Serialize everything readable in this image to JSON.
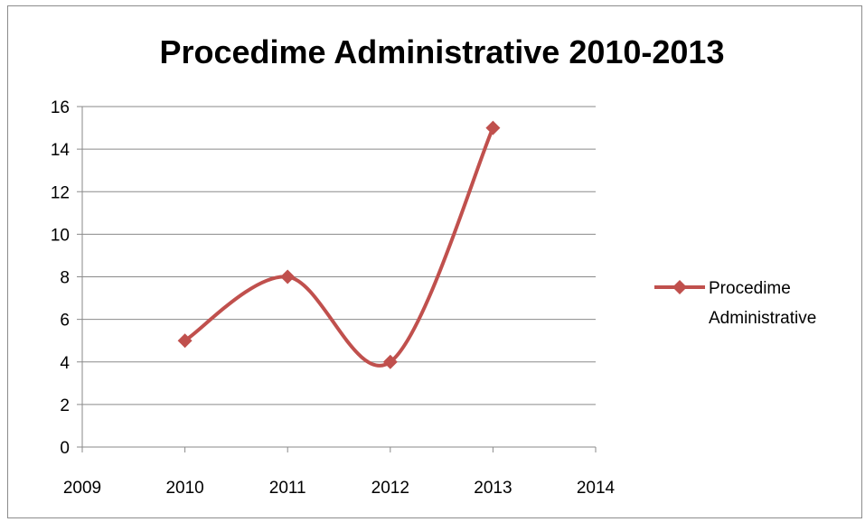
{
  "chart_data": {
    "type": "scatter",
    "title": "Procedime Administrative 2010-2013",
    "series": [
      {
        "name": "Procedime Administrative",
        "x": [
          2010,
          2011,
          2012,
          2013
        ],
        "y": [
          5,
          8,
          4,
          15
        ]
      }
    ],
    "xlim": [
      2009,
      2014
    ],
    "ylim": [
      0,
      16
    ],
    "xticks": [
      "2009",
      "2010",
      "2011",
      "2012",
      "2013",
      "2014"
    ],
    "yticks": [
      "0",
      "2",
      "4",
      "6",
      "8",
      "10",
      "12",
      "14",
      "16"
    ],
    "line_style": "smoothed",
    "marker": "diamond",
    "grid": "horizontal",
    "legend_position": "right",
    "legend_label_lines": [
      "Procedime",
      "Administrative"
    ],
    "series_color": "#c0504d"
  }
}
